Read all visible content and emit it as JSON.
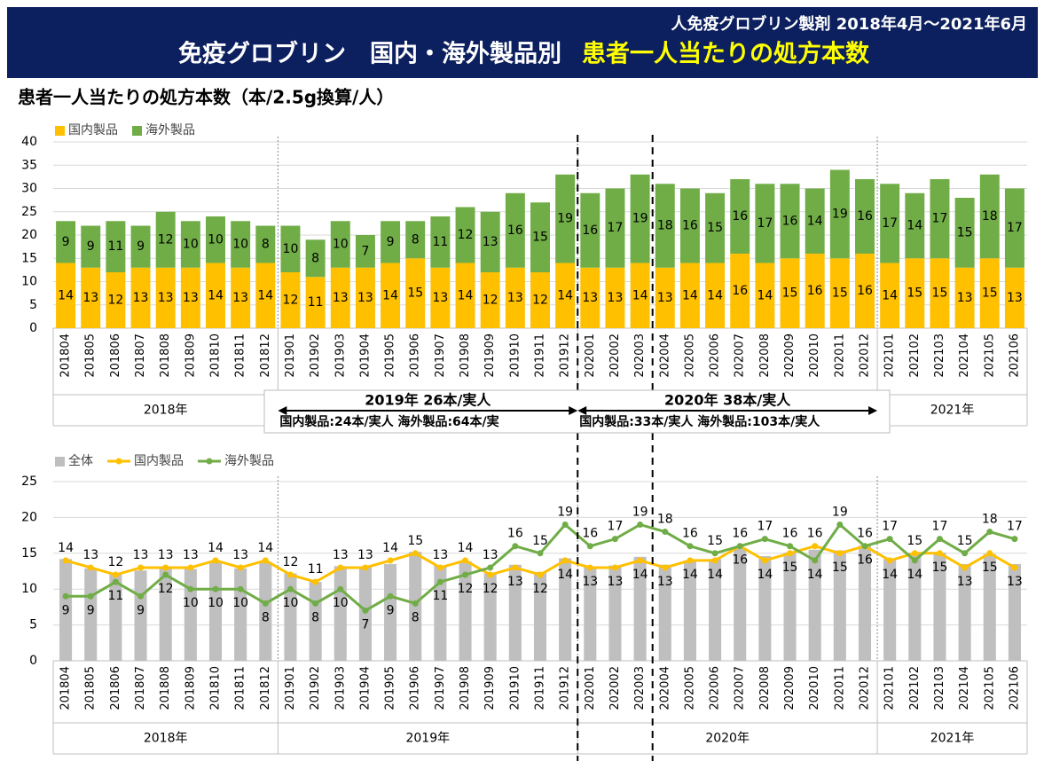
{
  "header": {
    "subtitle": "人免疫グロブリン製剤 2018年4月～2021年6月",
    "title_left": "免疫グロブリン　国内・海外製品別",
    "title_right": "患者一人当たりの処方本数"
  },
  "annotations": [
    {
      "title": "2019年 26本/実人",
      "detail": "国内製品:24本/実人 海外製品:64本/実"
    },
    {
      "title": "2020年 38本/実人",
      "detail": "国内製品:33本/実人 海外製品:103本/実人"
    }
  ],
  "chart_data": [
    {
      "type": "stacked_bar",
      "title": "患者一人当たりの処方本数（本/2.5g換算/人）",
      "categories": [
        "201804",
        "201805",
        "201806",
        "201807",
        "201808",
        "201809",
        "201810",
        "201811",
        "201812",
        "201901",
        "201902",
        "201903",
        "201904",
        "201905",
        "201906",
        "201907",
        "201908",
        "201909",
        "201910",
        "201911",
        "201912",
        "202001",
        "202002",
        "202003",
        "202004",
        "202005",
        "202006",
        "202007",
        "202008",
        "202009",
        "202010",
        "202011",
        "202012",
        "202101",
        "202102",
        "202103",
        "202104",
        "202105",
        "202106"
      ],
      "groups": [
        "2018年",
        "2021年"
      ],
      "series": [
        {
          "name": "国内製品",
          "color": "#ffc000",
          "values": [
            14,
            13,
            12,
            13,
            13,
            13,
            14,
            13,
            14,
            12,
            11,
            13,
            13,
            14,
            15,
            13,
            14,
            12,
            13,
            12,
            14,
            13,
            13,
            14,
            13,
            14,
            14,
            16,
            14,
            15,
            16,
            15,
            16,
            14,
            15,
            15,
            13,
            15,
            13
          ]
        },
        {
          "name": "海外製品",
          "color": "#70ad47",
          "values": [
            9,
            9,
            11,
            9,
            12,
            10,
            10,
            10,
            8,
            10,
            8,
            10,
            7,
            9,
            8,
            11,
            12,
            13,
            16,
            15,
            19,
            16,
            17,
            19,
            18,
            16,
            15,
            16,
            17,
            16,
            14,
            19,
            16,
            17,
            14,
            17,
            15,
            18,
            17
          ]
        }
      ],
      "ylim": [
        0,
        40
      ],
      "yticks": [
        0,
        5,
        10,
        15,
        20,
        25,
        30,
        35,
        40
      ],
      "legend": "top-left"
    },
    {
      "type": "bar_line",
      "categories": [
        "201804",
        "201805",
        "201806",
        "201807",
        "201808",
        "201809",
        "201810",
        "201811",
        "201812",
        "201901",
        "201902",
        "201903",
        "201904",
        "201905",
        "201906",
        "201907",
        "201908",
        "201909",
        "201910",
        "201911",
        "201912",
        "202001",
        "202002",
        "202003",
        "202004",
        "202005",
        "202006",
        "202007",
        "202008",
        "202009",
        "202010",
        "202011",
        "202012",
        "202101",
        "202102",
        "202103",
        "202104",
        "202105",
        "202106"
      ],
      "groups": [
        "2018年",
        "2019年",
        "2020年",
        "2021年"
      ],
      "series": [
        {
          "name": "全体",
          "color": "#bfbfbf",
          "kind": "bar",
          "values": [
            14.2,
            12.9,
            12.1,
            12.6,
            13.0,
            12.8,
            13.8,
            12.9,
            13.7,
            12.2,
            11.0,
            13.2,
            13.1,
            13.5,
            15.2,
            13.3,
            13.9,
            12.2,
            13.4,
            12.4,
            14.3,
            13.1,
            13.3,
            14.5,
            13.4,
            14.0,
            14.2,
            15.6,
            14.6,
            15.1,
            15.5,
            15.4,
            16.1,
            14.2,
            15.1,
            15.1,
            13.5,
            14.9,
            13.5
          ]
        },
        {
          "name": "国内製品",
          "color": "#ffc000",
          "kind": "line",
          "values": [
            14,
            13,
            12,
            13,
            13,
            13,
            14,
            13,
            14,
            12,
            11,
            13,
            13,
            14,
            15,
            13,
            14,
            12,
            13,
            12,
            14,
            13,
            13,
            14,
            13,
            14,
            14,
            16,
            14,
            15,
            16,
            15,
            16,
            14,
            15,
            15,
            13,
            15,
            13
          ]
        },
        {
          "name": "海外製品",
          "color": "#70ad47",
          "kind": "line",
          "values": [
            9,
            9,
            11,
            9,
            12,
            10,
            10,
            10,
            8,
            10,
            8,
            10,
            7,
            9,
            8,
            11,
            12,
            13,
            16,
            15,
            19,
            16,
            17,
            19,
            18,
            16,
            15,
            16,
            17,
            16,
            14,
            19,
            16,
            17,
            14,
            17,
            15,
            18,
            17
          ]
        }
      ],
      "ylim": [
        0,
        25
      ],
      "yticks": [
        0,
        5,
        10,
        15,
        20,
        25
      ],
      "legend": "top-left"
    }
  ]
}
